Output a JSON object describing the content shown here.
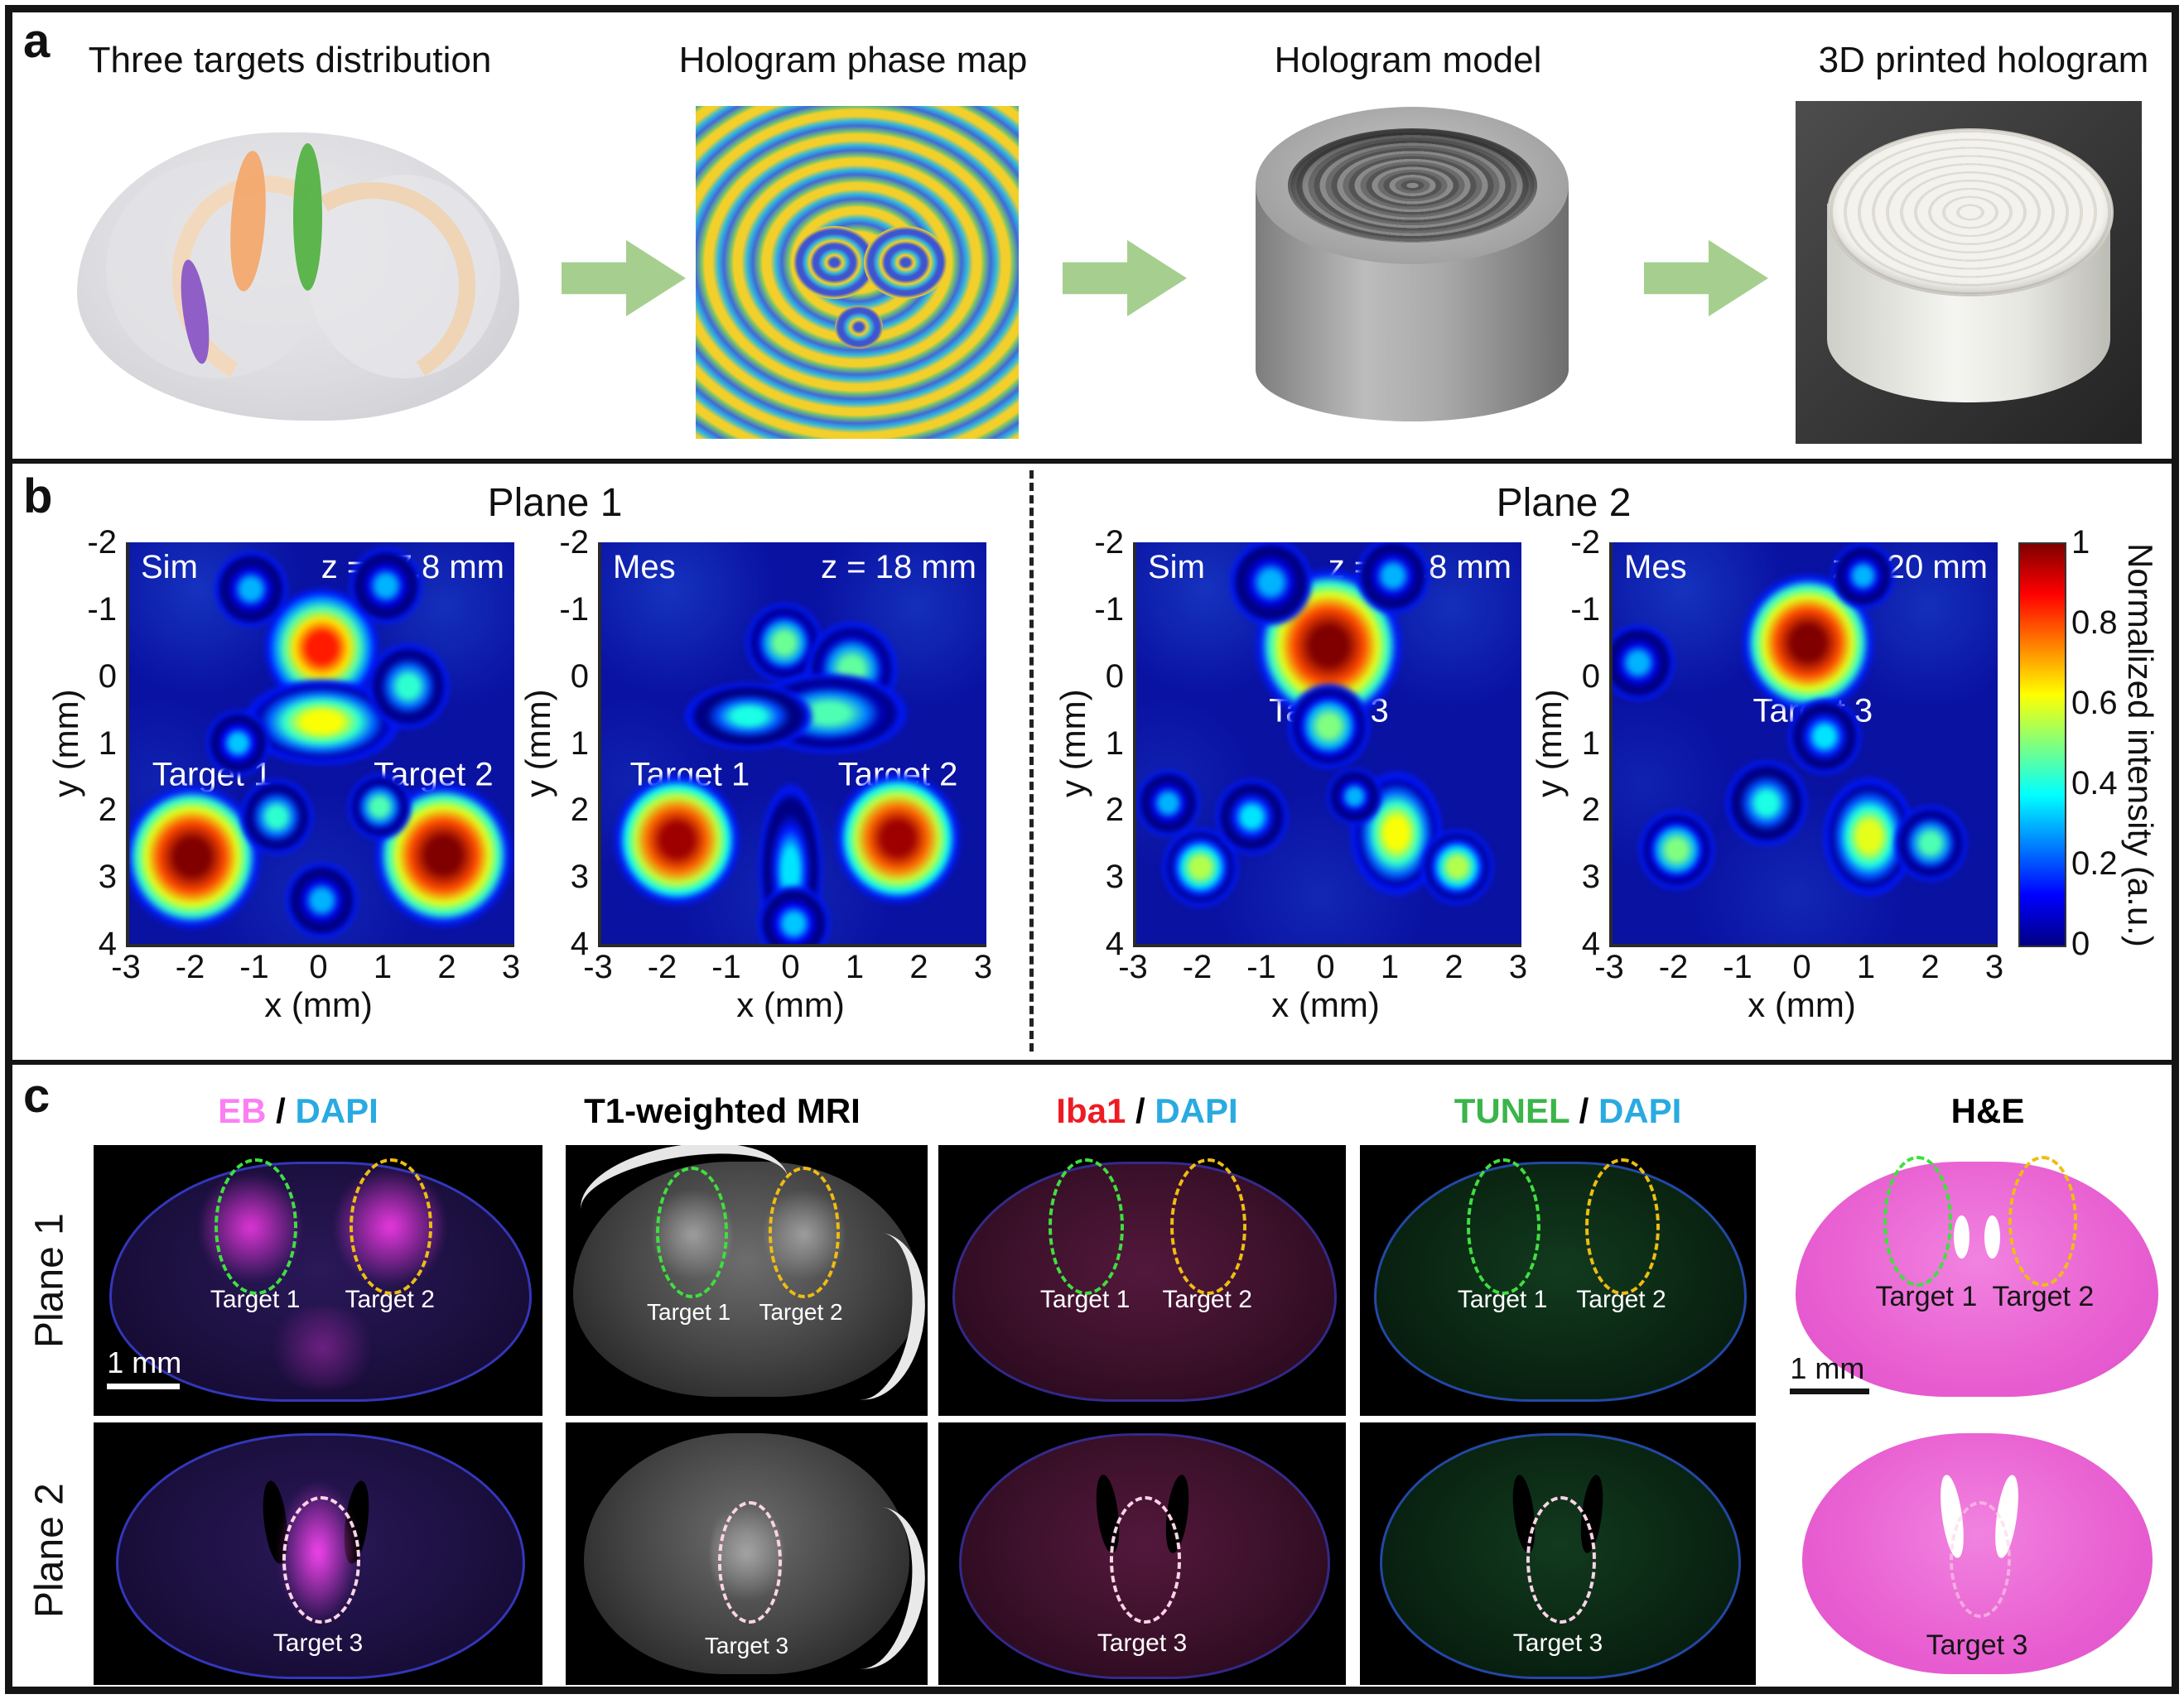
{
  "panel_a": {
    "label": "a",
    "arrow_color": "#a6cf8f",
    "steps": [
      {
        "title": "Three targets distribution",
        "image": "3d-brain-with-three-targets"
      },
      {
        "title": "Hologram phase map",
        "image": "phase-map"
      },
      {
        "title": "Hologram model",
        "image": "hologram-3d-model"
      },
      {
        "title": "3D printed hologram",
        "image": "printed-hologram-photo"
      }
    ]
  },
  "panel_b": {
    "label": "b",
    "planes": [
      {
        "title": "Plane 1"
      },
      {
        "title": "Plane 2"
      }
    ],
    "xlabel": "x (mm)",
    "ylabel": "y (mm)",
    "xticks": [
      "-3",
      "-2",
      "-1",
      "0",
      "1",
      "2",
      "3"
    ],
    "yticks": [
      "-2",
      "-1",
      "0",
      "1",
      "2",
      "3",
      "4"
    ],
    "plots": [
      {
        "mode": "Sim",
        "z_label": "z = 17.8 mm",
        "targets": [
          {
            "label": "Target 1"
          },
          {
            "label": "Target 2"
          }
        ]
      },
      {
        "mode": "Mes",
        "z_label": "z = 18 mm",
        "targets": [
          {
            "label": "Target 1"
          },
          {
            "label": "Target 2"
          }
        ]
      },
      {
        "mode": "Sim",
        "z_label": "z = 19.8 mm",
        "targets": [
          {
            "label": "Target 3"
          }
        ]
      },
      {
        "mode": "Mes",
        "z_label": "z = 20 mm",
        "targets": [
          {
            "label": "Target 3"
          }
        ]
      }
    ],
    "colorbar": {
      "ticks": [
        "1",
        "0.8",
        "0.6",
        "0.4",
        "0.2",
        "0"
      ],
      "label": "Normalized intensity (a.u.)"
    }
  },
  "chart_data": [
    {
      "type": "heatmap",
      "plane": "Plane 1",
      "mode": "Sim",
      "z_annotation": "z = 17.8 mm",
      "xlabel": "x (mm)",
      "ylabel": "y (mm)",
      "xlim": [
        -3,
        3
      ],
      "ylim": [
        -2,
        4
      ],
      "colormap": "jet",
      "colorbar_label": "Normalized intensity (a.u.)",
      "hotspots": [
        {
          "x": 0.0,
          "y": -0.42,
          "r": 0.62,
          "v": 0.85
        },
        {
          "x": 0.0,
          "y": 0.68,
          "rx": 0.85,
          "ry": 0.45,
          "v": 0.62
        },
        {
          "x": -2.02,
          "y": 2.7,
          "r": 0.75,
          "v": 1.0,
          "label": "Target 1"
        },
        {
          "x": 1.9,
          "y": 2.68,
          "r": 0.75,
          "v": 1.0,
          "label": "Target 2"
        },
        {
          "x": 1.35,
          "y": 0.15,
          "r": 0.45,
          "v": 0.42
        },
        {
          "x": -1.1,
          "y": -1.3,
          "r": 0.4,
          "v": 0.3
        },
        {
          "x": 1.0,
          "y": -1.35,
          "r": 0.4,
          "v": 0.3
        },
        {
          "x": -1.3,
          "y": 1.0,
          "r": 0.35,
          "v": 0.32
        },
        {
          "x": -0.7,
          "y": 2.1,
          "r": 0.4,
          "v": 0.42
        },
        {
          "x": 0.9,
          "y": 1.95,
          "r": 0.35,
          "v": 0.45
        },
        {
          "x": 0.0,
          "y": 3.35,
          "r": 0.4,
          "v": 0.3
        }
      ]
    },
    {
      "type": "heatmap",
      "plane": "Plane 1",
      "mode": "Mes",
      "z_annotation": "z = 18 mm",
      "xlabel": "x (mm)",
      "ylabel": "y (mm)",
      "xlim": [
        -3,
        3
      ],
      "ylim": [
        -2,
        4
      ],
      "colormap": "jet",
      "colorbar_label": "Normalized intensity (a.u.)",
      "hotspots": [
        {
          "x": -1.82,
          "y": 2.45,
          "r": 0.68,
          "v": 0.97,
          "label": "Target 1"
        },
        {
          "x": 1.62,
          "y": 2.42,
          "r": 0.68,
          "v": 0.97,
          "label": "Target 2"
        },
        {
          "x": -0.15,
          "y": -0.5,
          "r": 0.42,
          "v": 0.48
        },
        {
          "x": 0.9,
          "y": -0.1,
          "r": 0.5,
          "v": 0.47
        },
        {
          "x": 0.55,
          "y": 0.55,
          "rx": 0.85,
          "ry": 0.42,
          "v": 0.45
        },
        {
          "x": -0.7,
          "y": 0.6,
          "rx": 0.7,
          "ry": 0.35,
          "v": 0.4
        },
        {
          "x": -0.05,
          "y": 2.9,
          "rx": 0.35,
          "ry": 0.9,
          "v": 0.35
        },
        {
          "x": 0.0,
          "y": 3.7,
          "r": 0.4,
          "v": 0.32
        }
      ]
    },
    {
      "type": "heatmap",
      "plane": "Plane 2",
      "mode": "Sim",
      "z_annotation": "z = 19.8 mm",
      "xlabel": "x (mm)",
      "ylabel": "y (mm)",
      "xlim": [
        -3,
        3
      ],
      "ylim": [
        -2,
        4
      ],
      "colormap": "jet",
      "colorbar_label": "Normalized intensity (a.u.)",
      "hotspots": [
        {
          "x": 0.0,
          "y": -0.45,
          "r": 0.8,
          "v": 1.0,
          "label": "Target 3"
        },
        {
          "x": 0.0,
          "y": 0.75,
          "r": 0.45,
          "v": 0.5
        },
        {
          "x": -2.0,
          "y": 2.85,
          "r": 0.42,
          "v": 0.55
        },
        {
          "x": 1.05,
          "y": 2.35,
          "rx": 0.5,
          "ry": 0.65,
          "v": 0.62
        },
        {
          "x": 2.0,
          "y": 2.85,
          "r": 0.4,
          "v": 0.55
        },
        {
          "x": -1.2,
          "y": 2.1,
          "r": 0.4,
          "v": 0.35
        },
        {
          "x": -2.5,
          "y": 1.9,
          "r": 0.35,
          "v": 0.3
        },
        {
          "x": 0.4,
          "y": 1.8,
          "r": 0.3,
          "v": 0.3
        },
        {
          "x": -0.9,
          "y": -1.4,
          "r": 0.45,
          "v": 0.3
        },
        {
          "x": 1.0,
          "y": -1.5,
          "r": 0.4,
          "v": 0.3
        }
      ]
    },
    {
      "type": "heatmap",
      "plane": "Plane 2",
      "mode": "Mes",
      "z_annotation": "z = 20 mm",
      "xlabel": "x (mm)",
      "ylabel": "y (mm)",
      "xlim": [
        -3,
        3
      ],
      "ylim": [
        -2,
        4
      ],
      "colormap": "jet",
      "colorbar_label": "Normalized intensity (a.u.)",
      "hotspots": [
        {
          "x": 0.05,
          "y": -0.5,
          "r": 0.72,
          "v": 1.0,
          "label": "Target 3"
        },
        {
          "x": -2.0,
          "y": 2.6,
          "r": 0.42,
          "v": 0.5
        },
        {
          "x": 1.0,
          "y": 2.4,
          "rx": 0.5,
          "ry": 0.62,
          "v": 0.6
        },
        {
          "x": 1.95,
          "y": 2.5,
          "r": 0.4,
          "v": 0.45
        },
        {
          "x": -0.6,
          "y": 1.9,
          "r": 0.45,
          "v": 0.4
        },
        {
          "x": 0.3,
          "y": 0.9,
          "r": 0.4,
          "v": 0.35
        },
        {
          "x": -2.6,
          "y": -0.2,
          "r": 0.4,
          "v": 0.3
        },
        {
          "x": 0.9,
          "y": -1.5,
          "r": 0.35,
          "v": 0.3
        }
      ]
    }
  ],
  "panel_c": {
    "label": "c",
    "row_labels": [
      "Plane 1",
      "Plane 2"
    ],
    "headers": [
      {
        "parts": [
          {
            "text": "EB",
            "color": "#fb7ff3"
          },
          {
            "text": " / ",
            "color": "#000000"
          },
          {
            "text": "DAPI",
            "color": "#29aae1"
          }
        ]
      },
      {
        "parts": [
          {
            "text": "T1-weighted MRI",
            "color": "#000000"
          }
        ]
      },
      {
        "parts": [
          {
            "text": "Iba1",
            "color": "#ed1c24"
          },
          {
            "text": " / ",
            "color": "#000000"
          },
          {
            "text": "DAPI",
            "color": "#29aae1"
          }
        ]
      },
      {
        "parts": [
          {
            "text": "TUNEL",
            "color": "#3ab54a"
          },
          {
            "text": " / ",
            "color": "#000000"
          },
          {
            "text": "DAPI",
            "color": "#29aae1"
          }
        ]
      },
      {
        "parts": [
          {
            "text": "H&E",
            "color": "#000000"
          }
        ]
      }
    ],
    "target1_label": "Target 1",
    "target2_label": "Target 2",
    "target3_label": "Target 3",
    "scale_bar_label": "1 mm",
    "annotation_colors": {
      "target1_ellipse": "#3fdf3f",
      "target2_ellipse": "#eebd12",
      "target3_ellipse": "#fbd4e6"
    }
  }
}
